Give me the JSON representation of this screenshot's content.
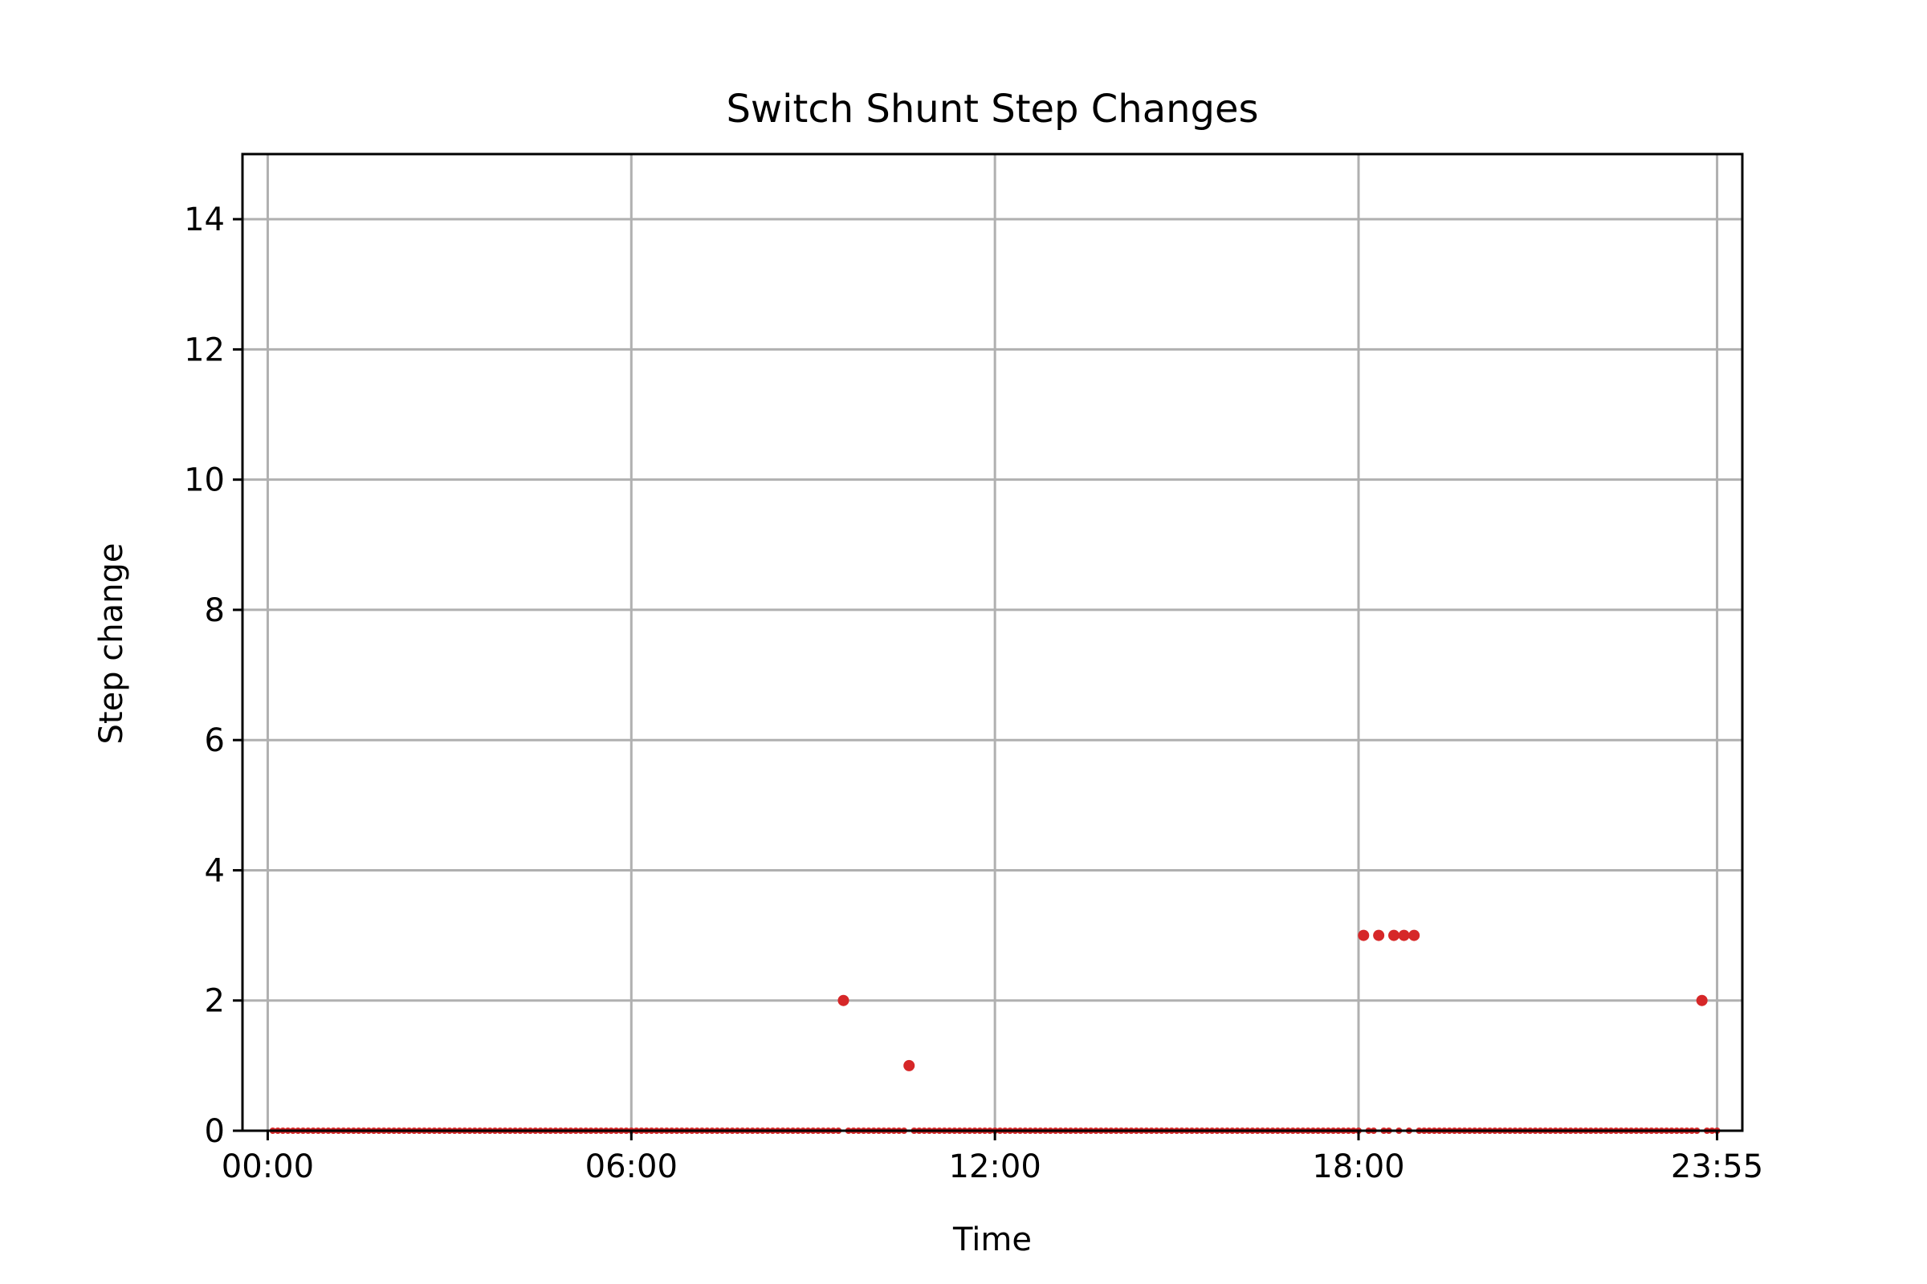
{
  "chart_data": {
    "type": "scatter",
    "title": "Switch Shunt Step Changes",
    "xlabel": "Time",
    "ylabel": "Step change",
    "x_unit": "minutes_of_day",
    "xlim": [
      -25,
      1460
    ],
    "ylim": [
      0,
      15
    ],
    "xticks": [
      {
        "value": 0,
        "label": "00:00"
      },
      {
        "value": 360,
        "label": "06:00"
      },
      {
        "value": 720,
        "label": "12:00"
      },
      {
        "value": 1080,
        "label": "18:00"
      },
      {
        "value": 1435,
        "label": "23:55"
      }
    ],
    "yticks": [
      0,
      2,
      4,
      6,
      8,
      10,
      12,
      14
    ],
    "grid": true,
    "legend": "none",
    "series": [
      {
        "color": "#d62728",
        "baseline": {
          "value": 0,
          "x_start": 5,
          "x_end": 1435,
          "step": 5
        },
        "points": [
          {
            "x": 570,
            "y": 2
          },
          {
            "x": 635,
            "y": 1
          },
          {
            "x": 1085,
            "y": 3
          },
          {
            "x": 1100,
            "y": 3
          },
          {
            "x": 1115,
            "y": 3
          },
          {
            "x": 1125,
            "y": 3
          },
          {
            "x": 1135,
            "y": 3
          },
          {
            "x": 1420,
            "y": 2
          }
        ]
      }
    ]
  }
}
